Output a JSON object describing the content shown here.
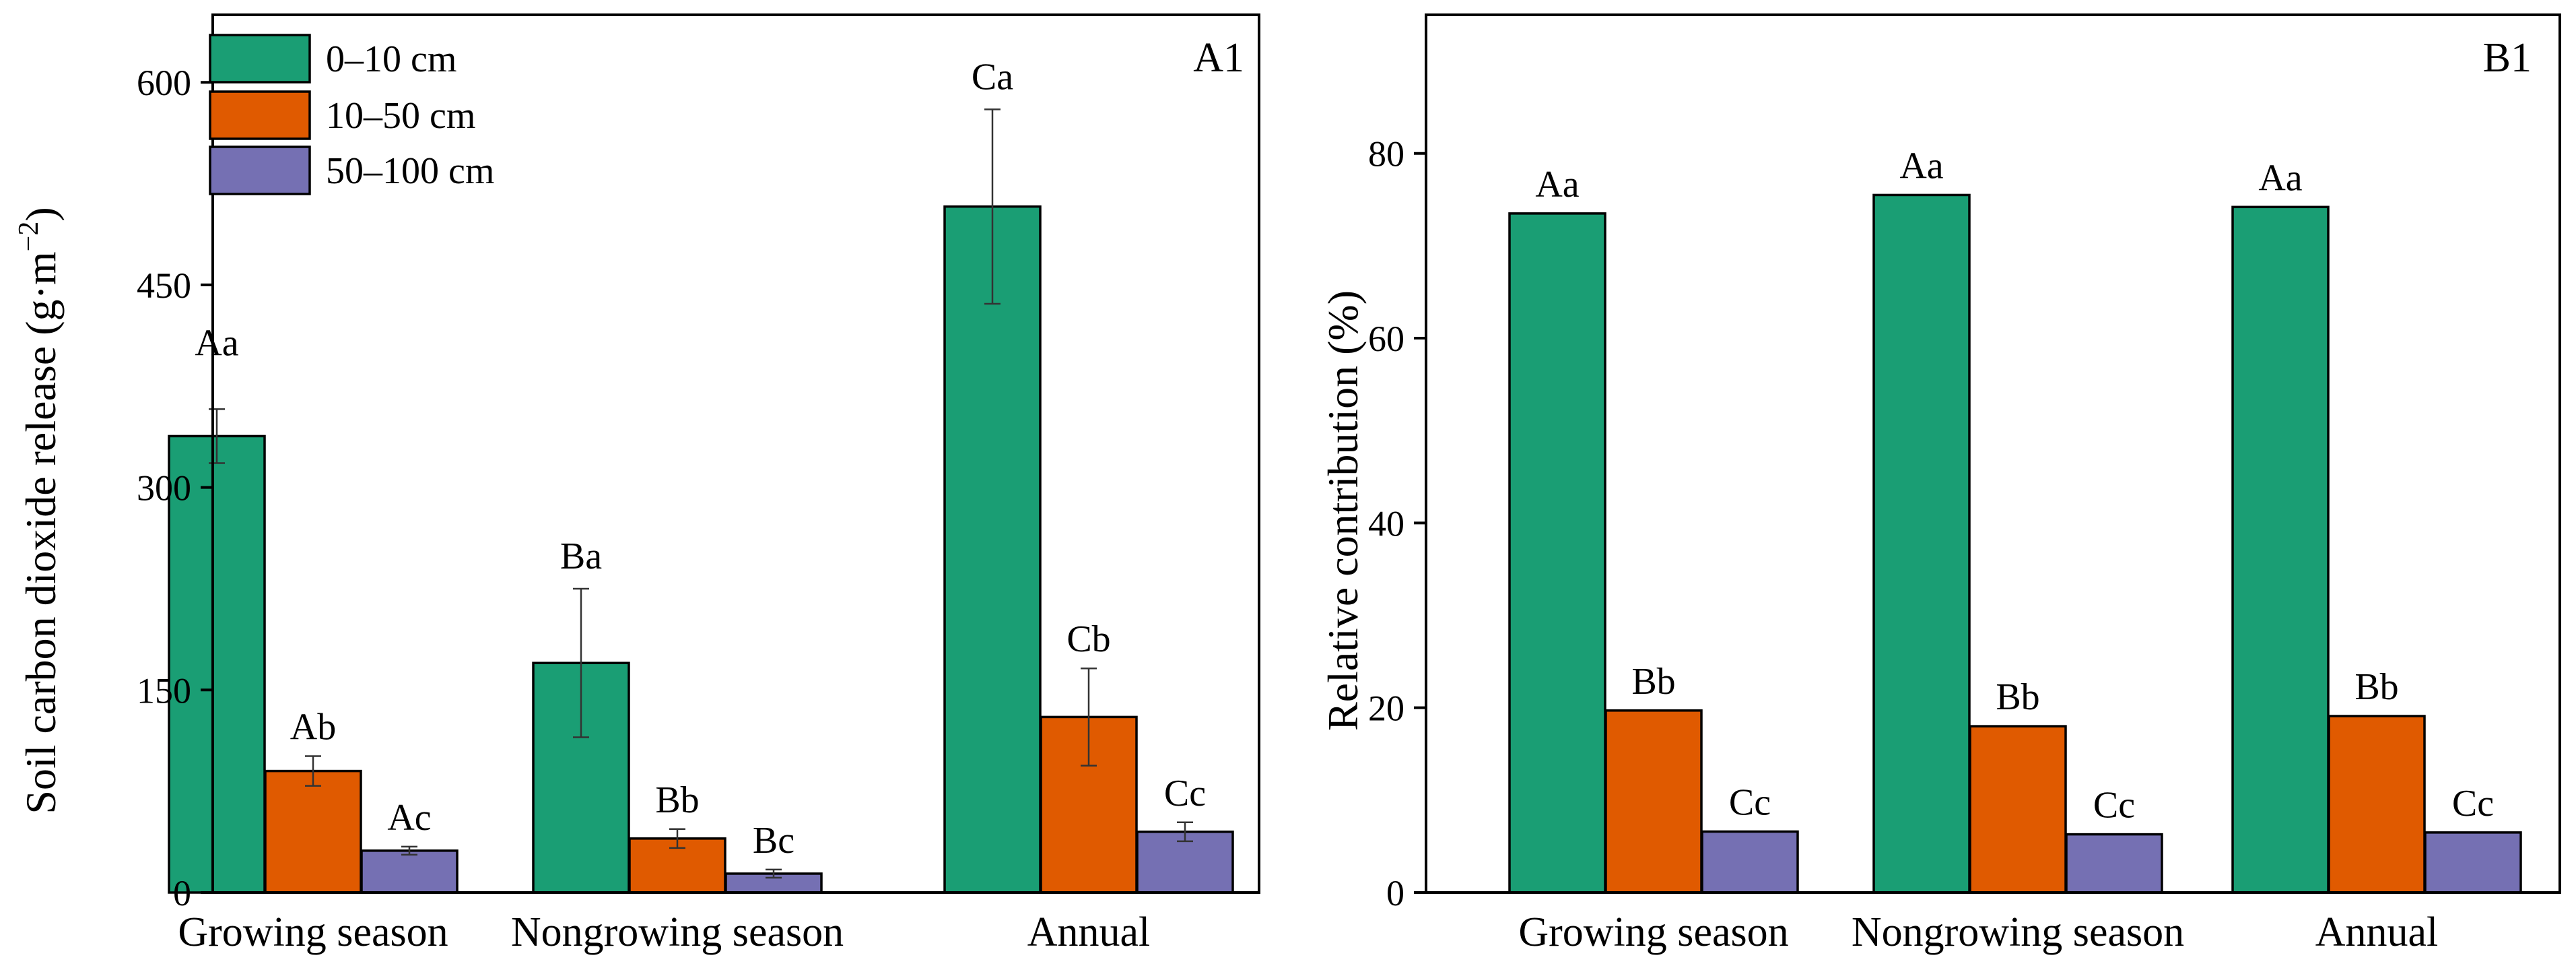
{
  "colors": {
    "0–10 cm": "#1a9e74",
    "10–50 cm": "#e05a00",
    "50–100 cm": "#7570b3"
  },
  "chart_data": [
    {
      "type": "bar",
      "panel": "A1",
      "ylabel": "Soil carbon dioxide release (g·m⁻²)",
      "ylabel_main": "Soil carbon dioxide release (g·m",
      "ylabel_sup": "−2",
      "ylabel_close": ")",
      "ylim": [
        0,
        650
      ],
      "yticks": [
        0,
        150,
        300,
        450,
        600
      ],
      "categories": [
        "Growing season",
        "Nongrowing season",
        "Annual"
      ],
      "legend_position": "top-left",
      "series": [
        {
          "name": "0–10 cm",
          "values": [
            338,
            170,
            508
          ],
          "errors": [
            20,
            55,
            72
          ],
          "labels": [
            "Aa",
            "Ba",
            "Ca"
          ]
        },
        {
          "name": "10–50 cm",
          "values": [
            90,
            40,
            130
          ],
          "errors": [
            11,
            7,
            36
          ],
          "labels": [
            "Ab",
            "Bb",
            "Cb"
          ]
        },
        {
          "name": "50–100 cm",
          "values": [
            31,
            14,
            45
          ],
          "errors": [
            3,
            3,
            7
          ],
          "labels": [
            "Ac",
            "Bc",
            "Cc"
          ]
        }
      ]
    },
    {
      "type": "bar",
      "panel": "B1",
      "ylabel": "Relative contribution (%)",
      "ylim": [
        0,
        95
      ],
      "yticks": [
        0,
        20,
        40,
        60,
        80
      ],
      "categories": [
        "Growing season",
        "Nongrowing season",
        "Annual"
      ],
      "series": [
        {
          "name": "0–10 cm",
          "values": [
            73.5,
            75.5,
            74.2
          ],
          "labels": [
            "Aa",
            "Aa",
            "Aa"
          ]
        },
        {
          "name": "10–50 cm",
          "values": [
            19.7,
            18.0,
            19.1
          ],
          "labels": [
            "Bb",
            "Bb",
            "Bb"
          ]
        },
        {
          "name": "50–100 cm",
          "values": [
            6.6,
            6.3,
            6.5
          ],
          "labels": [
            "Cc",
            "Cc",
            "Cc"
          ]
        }
      ]
    }
  ]
}
